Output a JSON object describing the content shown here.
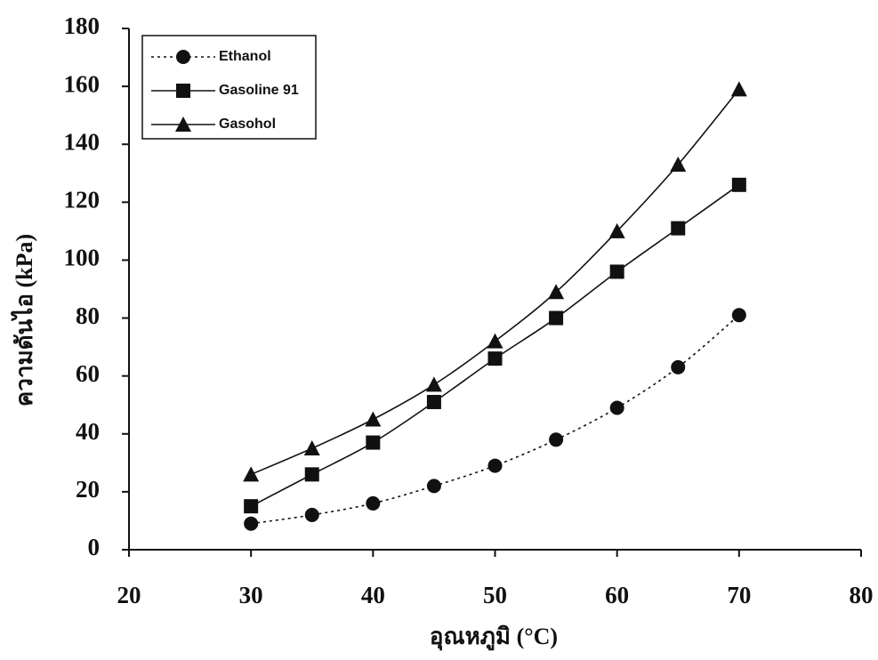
{
  "chart_data": {
    "type": "line",
    "x_label": "อุณหภูมิ (°C)",
    "y_label": "ความดันไอ (kPa)",
    "x": [
      30,
      35,
      40,
      45,
      50,
      55,
      60,
      65,
      70
    ],
    "series": [
      {
        "name": "Ethanol",
        "color": "#111111",
        "marker": "circle",
        "line_style": "dotted",
        "values": [
          9,
          12,
          16,
          22,
          29,
          38,
          49,
          63,
          81
        ]
      },
      {
        "name": "Gasoline 91",
        "color": "#111111",
        "marker": "square",
        "line_style": "solid",
        "values": [
          15,
          26,
          37,
          51,
          66,
          80,
          96,
          111,
          126
        ]
      },
      {
        "name": "Gasohol",
        "color": "#111111",
        "marker": "triangle",
        "line_style": "solid",
        "values": [
          26,
          35,
          45,
          57,
          72,
          89,
          110,
          133,
          159
        ]
      }
    ],
    "xlim": [
      20,
      80
    ],
    "xticks": [
      20,
      30,
      40,
      50,
      60,
      70,
      80
    ],
    "ylim": [
      0,
      180
    ],
    "yticks": [
      0,
      20,
      40,
      60,
      80,
      100,
      120,
      140,
      160,
      180
    ],
    "grid": false,
    "legend_position": "upper-left"
  }
}
